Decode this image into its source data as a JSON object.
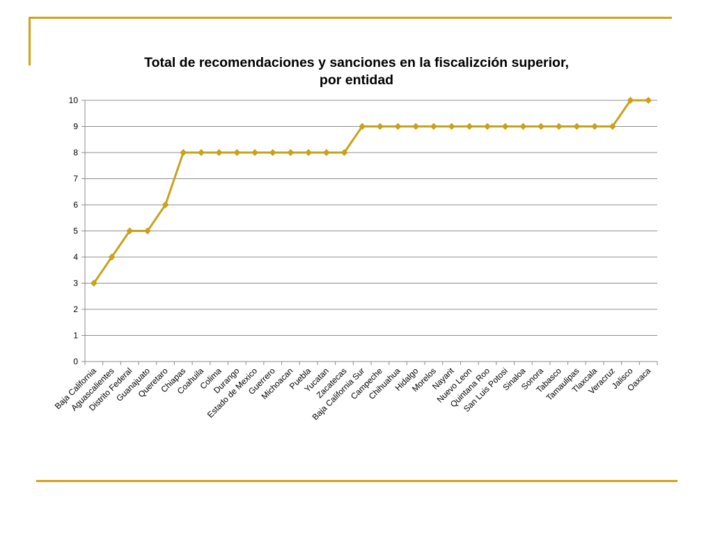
{
  "chart_data": {
    "type": "line",
    "title_line1": "Total de recomendaciones y sanciones en la fiscalizción superior,",
    "title_line2": "por entidad",
    "xlabel": "",
    "ylabel": "",
    "ylim": [
      0,
      10
    ],
    "yticks": [
      "0",
      "1",
      "2",
      "3",
      "4",
      "5",
      "6",
      "7",
      "8",
      "9",
      "10"
    ],
    "grid": true,
    "legend": "none",
    "series_color": "#C9A11A",
    "categories": [
      "Baja California",
      "Aguascalientes",
      "Distrito Federal",
      "Guanajuato",
      "Queretaro",
      "Chiapas",
      "Coahuila",
      "Colima",
      "Durango",
      "Estado de Mexico",
      "Guerrero",
      "Michoacan",
      "Puebla",
      "Yucatan",
      "Zacatecas",
      "Baja California Sur",
      "Campeche",
      "Chihuahua",
      "Hidalgo",
      "Morelos",
      "Nayarit",
      "Nuevo Leon",
      "Quintana Roo",
      "San Luis Potosi",
      "Sinaloa",
      "Sonora",
      "Tabasco",
      "Tamaulipas",
      "Tlaxcala",
      "Veracruz",
      "Jalisco",
      "Oaxaca"
    ],
    "values": [
      3,
      4,
      5,
      5,
      6,
      8,
      8,
      8,
      8,
      8,
      8,
      8,
      8,
      8,
      8,
      9,
      9,
      9,
      9,
      9,
      9,
      9,
      9,
      9,
      9,
      9,
      9,
      9,
      9,
      9,
      10,
      10
    ]
  },
  "colors": {
    "accent": "#D4A017",
    "grid": "#8C8C8C"
  }
}
